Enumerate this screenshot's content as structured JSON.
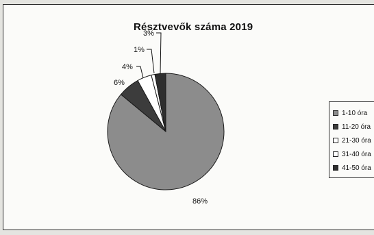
{
  "chart_data": {
    "type": "pie",
    "title": "Résztvevők száma 2019",
    "categories": [
      "1-10 óra",
      "11-20 óra",
      "21-30 óra",
      "31-40 óra",
      "41-50 óra"
    ],
    "values": [
      86,
      6,
      4,
      1,
      3
    ],
    "value_labels": [
      "86%",
      "6%",
      "4%",
      "1%",
      "3%"
    ],
    "colors": [
      "#8c8c8c",
      "#3c3c3c",
      "#ffffff",
      "#ffffff",
      "#2e2e2e"
    ],
    "legend": {
      "placement": "right",
      "entries": [
        "1-10 óra",
        "11-20 óra",
        "21-30 óra",
        "31-40 óra",
        "41-50 óra"
      ]
    }
  }
}
